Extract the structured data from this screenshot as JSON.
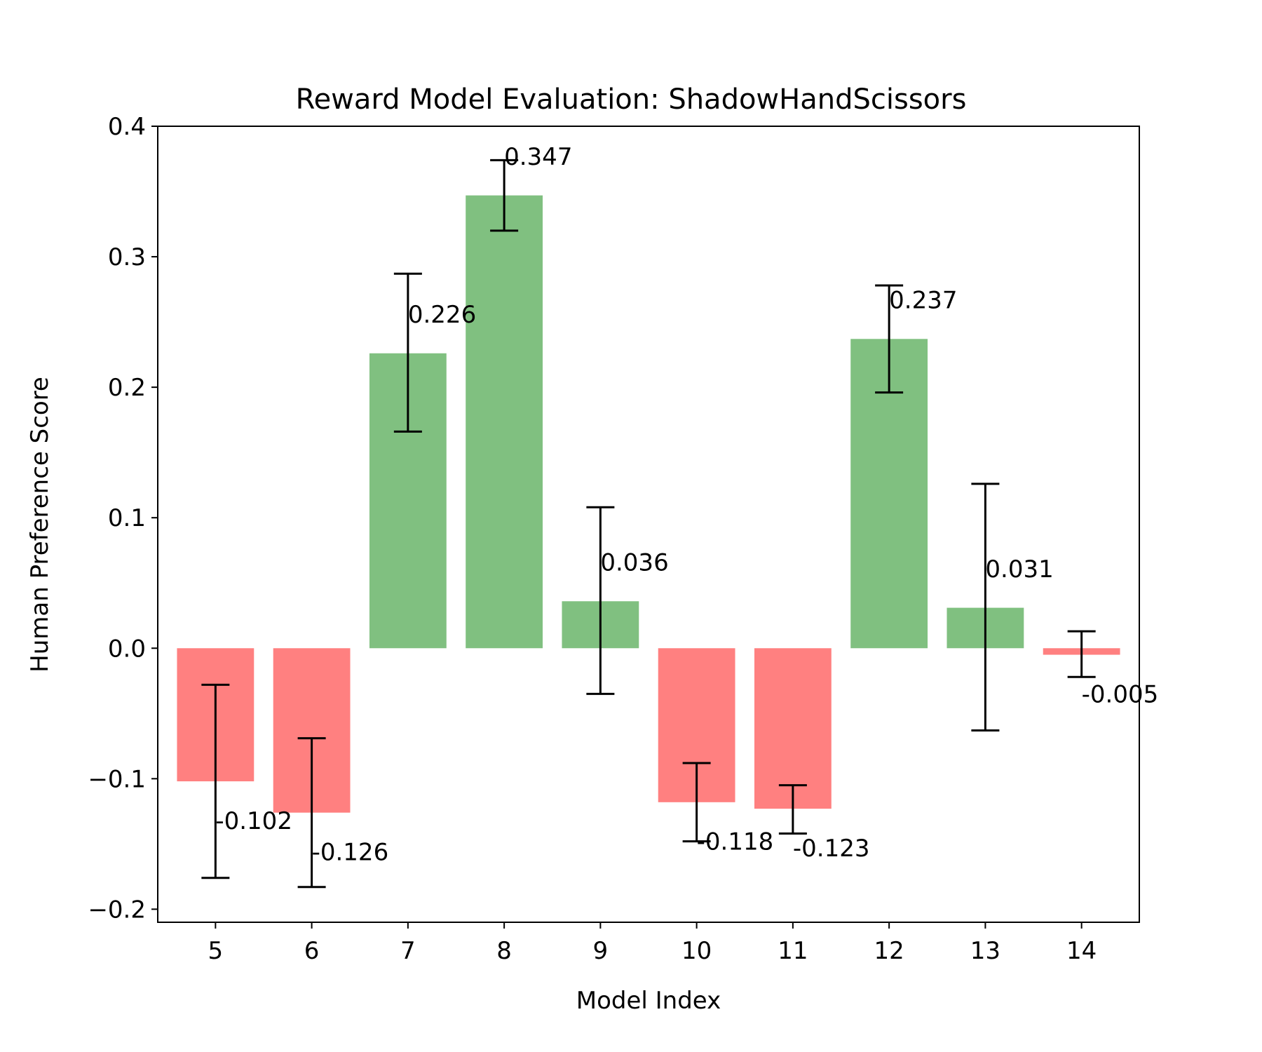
{
  "chart_data": {
    "type": "bar",
    "title": "Reward Model Evaluation: ShadowHandScissors",
    "xlabel": "Model Index",
    "ylabel": "Human Preference Score",
    "categories": [
      "5",
      "6",
      "7",
      "8",
      "9",
      "10",
      "11",
      "12",
      "13",
      "14"
    ],
    "values": [
      -0.102,
      -0.126,
      0.226,
      0.347,
      0.036,
      -0.118,
      -0.123,
      0.237,
      0.031,
      -0.005
    ],
    "value_labels": [
      "-0.102",
      "-0.126",
      "0.226",
      "0.347",
      "0.036",
      "-0.118",
      "-0.123",
      "0.237",
      "0.031",
      "-0.005"
    ],
    "error_low": [
      -0.176,
      -0.183,
      0.166,
      0.32,
      -0.035,
      -0.148,
      -0.142,
      0.196,
      -0.063,
      -0.022
    ],
    "error_high": [
      -0.028,
      -0.069,
      0.287,
      0.374,
      0.108,
      -0.088,
      -0.105,
      0.278,
      0.126,
      0.013
    ],
    "ylim": [
      -0.21,
      0.4
    ],
    "yticks": [
      -0.2,
      -0.1,
      0.0,
      0.1,
      0.2,
      0.3,
      0.4
    ],
    "ytick_labels": [
      "−0.2",
      "−0.1",
      "0.0",
      "0.1",
      "0.2",
      "0.3",
      "0.4"
    ],
    "colors": {
      "positive": "#80c080",
      "negative": "#ff8080",
      "error_bar": "#000000"
    },
    "grid": false,
    "legend": "none"
  }
}
